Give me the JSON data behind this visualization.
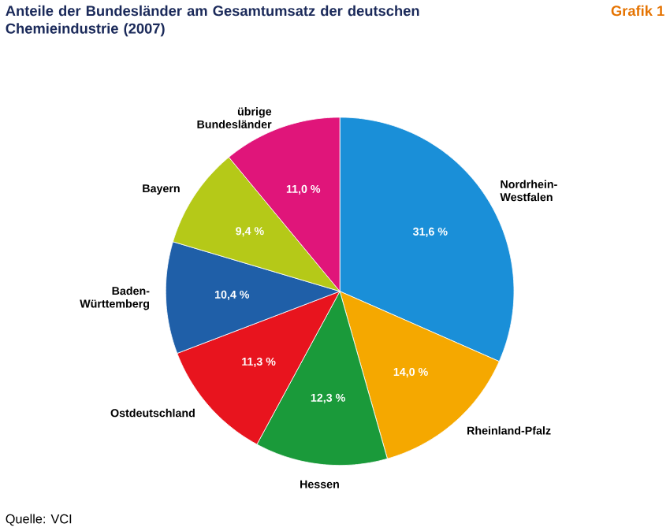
{
  "chart_data": {
    "type": "pie",
    "title": "Anteile der Bundesländer am Gesamtumsatz der deutschen Chemieindustrie (2007)",
    "categories": [
      "Nordrhein-Westfalen",
      "Rheinland-Pfalz",
      "Hessen",
      "Ostdeutschland",
      "Baden-Württemberg",
      "Bayern",
      "übrige Bundesländer"
    ],
    "values": [
      31.6,
      14.0,
      12.3,
      11.3,
      10.4,
      9.4,
      11.0
    ],
    "value_labels": [
      "31,6 %",
      "14,0 %",
      "12,3 %",
      "11,3 %",
      "10,4 %",
      "9,4 %",
      "11,0 %"
    ],
    "colors": [
      "#1a8fd8",
      "#f5a800",
      "#1a9a3a",
      "#e8141e",
      "#1f5fa8",
      "#b5c918",
      "#e0157a"
    ],
    "annotations": [
      "Grafik 1",
      "Quelle: VCI"
    ]
  }
}
